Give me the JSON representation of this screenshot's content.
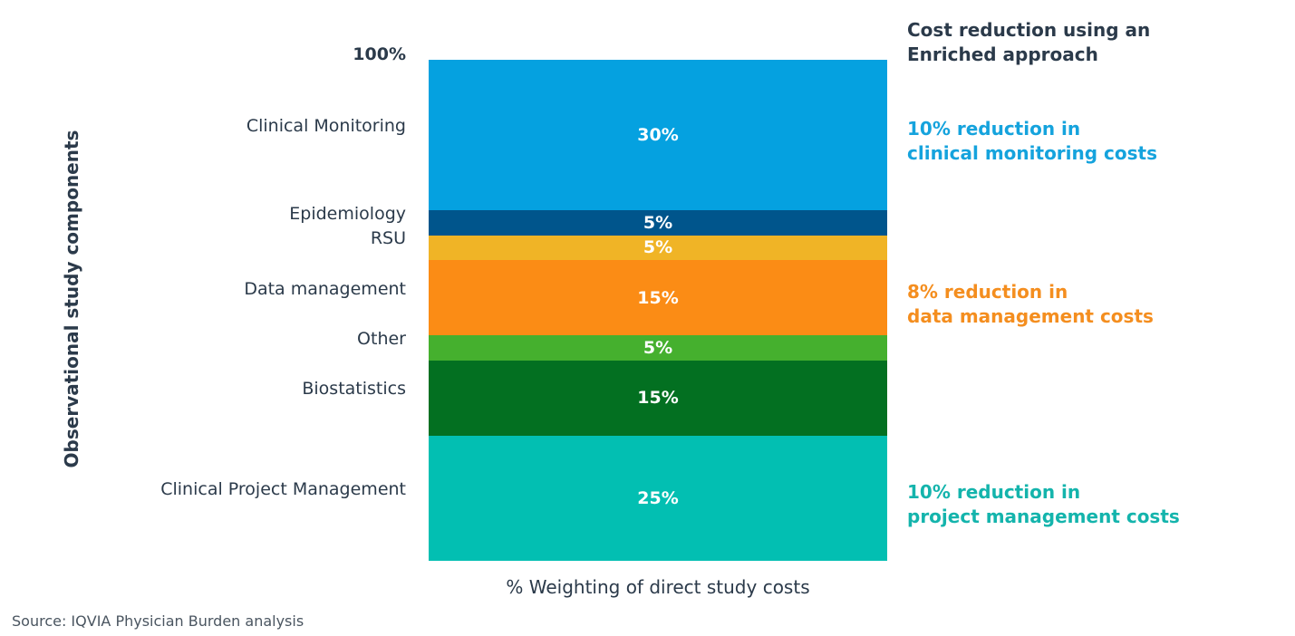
{
  "chart_data": {
    "type": "bar",
    "stacked": true,
    "top_tick_label": "100%",
    "ylabel": "Observational study components",
    "xlabel": "% Weighting of direct study costs",
    "annotation_title": "Cost reduction using an Enriched approach",
    "annotation_title_lines": [
      "Cost reduction using an",
      "Enriched approach"
    ],
    "source": "Source: IQVIA Physician Burden analysis",
    "segments": [
      {
        "name": "Clinical Monitoring",
        "value": 30,
        "label": "30%",
        "color": "#05a1e0"
      },
      {
        "name": "Epidemiology",
        "value": 5,
        "label": "5%",
        "color": "#00558c"
      },
      {
        "name": "RSU",
        "value": 5,
        "label": "5%",
        "color": "#f0b426"
      },
      {
        "name": "Data management",
        "value": 15,
        "label": "15%",
        "color": "#fb8c15"
      },
      {
        "name": "Other",
        "value": 5,
        "label": "5%",
        "color": "#45b02e"
      },
      {
        "name": "Biostatistics",
        "value": 15,
        "label": "15%",
        "color": "#037021"
      },
      {
        "name": "Clinical Project Management",
        "value": 25,
        "label": "25%",
        "color": "#02bfb2"
      }
    ],
    "annotations": [
      {
        "segment": "Clinical Monitoring",
        "lines": [
          "10% reduction in",
          "clinical monitoring costs"
        ],
        "color": "#15a3dd"
      },
      {
        "segment": "Data management",
        "lines": [
          "8% reduction in",
          "data management costs"
        ],
        "color": "#f48e1f"
      },
      {
        "segment": "Clinical Project Management",
        "lines": [
          "10% reduction in",
          "project management costs"
        ],
        "color": "#14b4ac"
      }
    ]
  }
}
